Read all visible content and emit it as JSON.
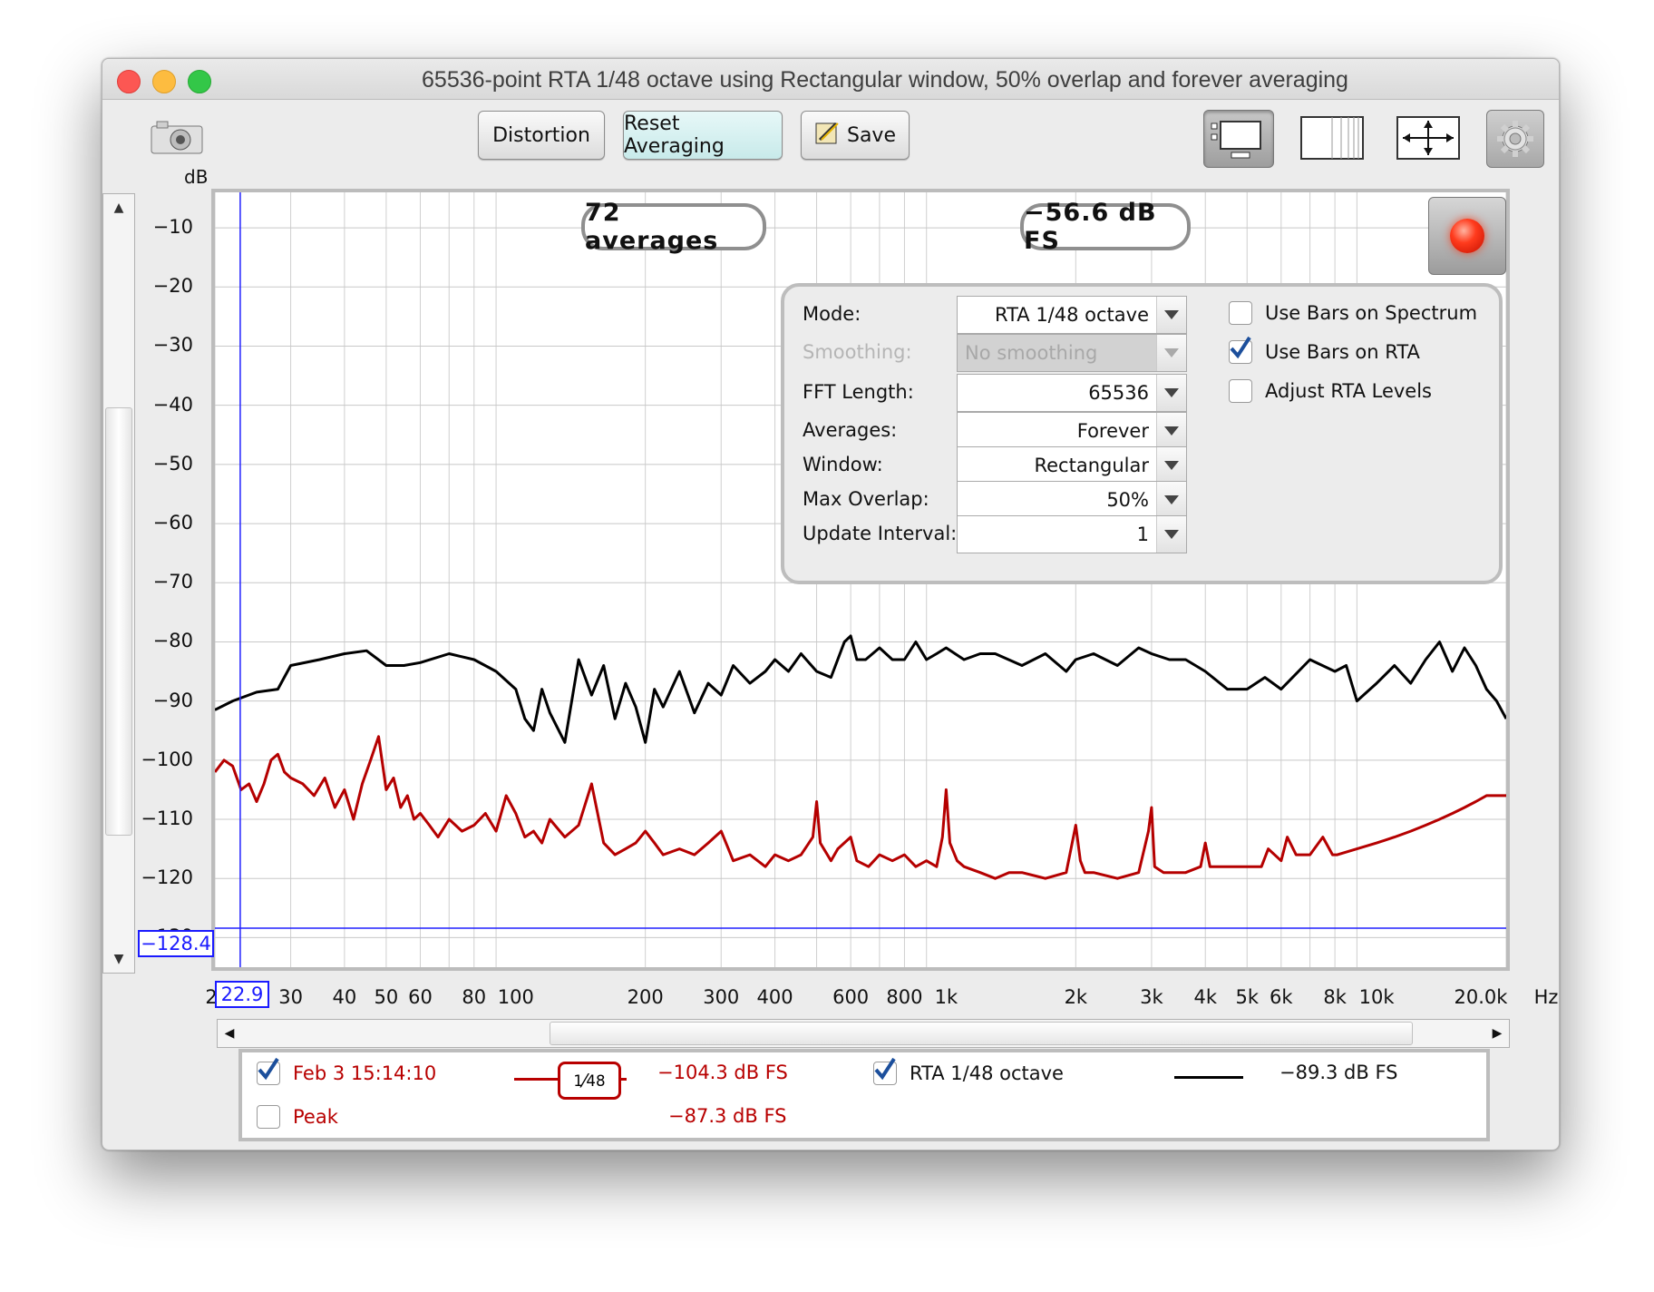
{
  "window": {
    "title": "65536-point RTA 1/48 octave using Rectangular window, 50% overlap and forever averaging"
  },
  "toolbar": {
    "buttons": [
      {
        "label": "Distortion"
      },
      {
        "label": "Reset Averaging"
      },
      {
        "label": "Save"
      }
    ],
    "icons": [
      "camera-icon",
      "layout-icon",
      "grid-icon",
      "zoom-arrows-icon",
      "gear-icon"
    ]
  },
  "plot": {
    "averages_readout": "72 averages",
    "level_readout": "−56.6 dB FS",
    "cursor_x_value": "22.9",
    "cursor_y_value": "−128.4",
    "x_leading_digit": "2",
    "y_unit": "dB",
    "x_unit": "Hz"
  },
  "settings": {
    "rows": [
      {
        "label": "Mode:",
        "value": "RTA 1/48 octave",
        "enabled": true
      },
      {
        "label": "Smoothing:",
        "value": "No  smoothing",
        "enabled": false
      },
      {
        "label": "FFT Length:",
        "value": "65536",
        "enabled": true
      },
      {
        "label": "Averages:",
        "value": "Forever",
        "enabled": true
      },
      {
        "label": "Window:",
        "value": "Rectangular",
        "enabled": true
      },
      {
        "label": "Max Overlap:",
        "value": "50%",
        "enabled": true
      },
      {
        "label": "Update Interval:",
        "value": "1",
        "enabled": true
      }
    ],
    "checkboxes": [
      {
        "label": "Use Bars on Spectrum",
        "checked": false
      },
      {
        "label": "Use Bars on RTA",
        "checked": true
      },
      {
        "label": "Adjust RTA Levels",
        "checked": false
      }
    ]
  },
  "legend": {
    "items": [
      {
        "label": "Feb 3 15:14:10",
        "checked": true,
        "value": "−104.3 dB FS",
        "smoothing_num": "1",
        "smoothing_den": "48"
      },
      {
        "label": "RTA 1/48 octave",
        "checked": true,
        "value": "−89.3 dB FS"
      },
      {
        "label": "Peak",
        "checked": false,
        "value": "−87.3 dB FS"
      }
    ]
  },
  "chart_data": {
    "type": "line",
    "x_scale": "log",
    "xlim": [
      20,
      20000
    ],
    "ylim": [
      -135,
      -4
    ],
    "ylabel": "dB",
    "xlabel": "Hz",
    "y_ticks": [
      "−10",
      "−20",
      "−30",
      "−40",
      "−50",
      "−60",
      "−70",
      "−80",
      "−90",
      "−100",
      "−110",
      "−120",
      "−130"
    ],
    "x_ticks": [
      {
        "value": 30,
        "label": "30"
      },
      {
        "value": 40,
        "label": "40"
      },
      {
        "value": 50,
        "label": "50"
      },
      {
        "value": 60,
        "label": "60"
      },
      {
        "value": 80,
        "label": "80"
      },
      {
        "value": 100,
        "label": "100"
      },
      {
        "value": 200,
        "label": "200"
      },
      {
        "value": 300,
        "label": "300"
      },
      {
        "value": 400,
        "label": "400"
      },
      {
        "value": 600,
        "label": "600"
      },
      {
        "value": 800,
        "label": "800"
      },
      {
        "value": 1000,
        "label": "1k"
      },
      {
        "value": 2000,
        "label": "2k"
      },
      {
        "value": 3000,
        "label": "3k"
      },
      {
        "value": 4000,
        "label": "4k"
      },
      {
        "value": 5000,
        "label": "5k"
      },
      {
        "value": 6000,
        "label": "6k"
      },
      {
        "value": 8000,
        "label": "8k"
      },
      {
        "value": 10000,
        "label": "10k"
      },
      {
        "value": 20000,
        "label": "20.0k"
      }
    ],
    "cursor": {
      "x": 22.9,
      "y": -128.4
    },
    "series": [
      {
        "color": "#000000",
        "x": [
          20,
          22,
          25,
          28,
          30,
          35,
          40,
          45,
          50,
          55,
          60,
          70,
          80,
          90,
          100,
          105,
          110,
          115,
          120,
          130,
          140,
          150,
          160,
          170,
          180,
          190,
          200,
          210,
          220,
          240,
          260,
          280,
          300,
          320,
          350,
          380,
          400,
          430,
          460,
          500,
          540,
          580,
          600,
          620,
          650,
          700,
          750,
          800,
          850,
          900,
          950,
          1000,
          1100,
          1200,
          1300,
          1500,
          1700,
          1900,
          2000,
          2200,
          2500,
          2800,
          3000,
          3300,
          3600,
          4000,
          4500,
          5000,
          5500,
          6000,
          7000,
          8000,
          8500,
          9000,
          10000,
          11000,
          12000,
          13000,
          14000,
          15000,
          16000,
          17000,
          18000,
          19000,
          20000
        ],
        "y": [
          -91.5,
          -90,
          -88.5,
          -88,
          -84,
          -83,
          -82,
          -81.5,
          -84,
          -84,
          -83.5,
          -82,
          -83,
          -85,
          -88,
          -93,
          -95,
          -88,
          -92,
          -97,
          -83,
          -89,
          -84,
          -93,
          -87,
          -91,
          -97,
          -88,
          -91,
          -85,
          -92,
          -87,
          -89,
          -84,
          -87,
          -85,
          -83,
          -85,
          -82,
          -85,
          -86,
          -80,
          -79,
          -83,
          -83,
          -81,
          -83,
          -83,
          -80,
          -83,
          -82,
          -81,
          -83,
          -82,
          -82,
          -84,
          -82,
          -85,
          -83,
          -82,
          -84,
          -81,
          -82,
          -83,
          -83,
          -85,
          -88,
          -88,
          -86,
          -88,
          -83,
          -85,
          -84,
          -90,
          -87,
          -84,
          -87,
          -83,
          -80,
          -85,
          -81,
          -84,
          -88,
          -90,
          -93
        ]
      },
      {
        "color": "#b50000",
        "x": [
          20,
          21,
          22,
          23,
          24,
          25,
          26,
          27,
          28,
          29,
          30,
          32,
          34,
          36,
          38,
          40,
          42,
          44,
          46,
          48,
          50,
          52,
          54,
          56,
          58,
          60,
          63,
          66,
          70,
          75,
          80,
          85,
          90,
          95,
          100,
          105,
          110,
          115,
          120,
          130,
          140,
          150,
          160,
          170,
          180,
          190,
          200,
          210,
          220,
          240,
          260,
          280,
          300,
          320,
          350,
          380,
          400,
          430,
          460,
          490,
          500,
          510,
          540,
          560,
          600,
          620,
          660,
          700,
          750,
          800,
          850,
          900,
          950,
          980,
          1000,
          1020,
          1060,
          1100,
          1200,
          1300,
          1400,
          1500,
          1700,
          1900,
          2000,
          2050,
          2100,
          2200,
          2500,
          2800,
          2950,
          3000,
          3050,
          3200,
          3600,
          3900,
          4000,
          4100,
          4500,
          5000,
          5400,
          5600,
          6000,
          6200,
          6500,
          7000,
          7500,
          7900,
          8000,
          8100,
          9000,
          10000,
          11000,
          12000,
          13000,
          14000,
          15000,
          16000,
          17000,
          18000,
          19000,
          20000
        ],
        "y": [
          -102,
          -100,
          -101,
          -105,
          -104,
          -107,
          -104,
          -100,
          -99,
          -102,
          -103,
          -104,
          -106,
          -103,
          -108,
          -105,
          -110,
          -104,
          -100,
          -96,
          -105,
          -103,
          -108,
          -106,
          -110,
          -109,
          -111,
          -113,
          -110,
          -112,
          -111,
          -109,
          -112,
          -106,
          -109,
          -113,
          -112,
          -114,
          -110,
          -113,
          -111,
          -104,
          -114,
          -116,
          -115,
          -114,
          -112,
          -114,
          -116,
          -115,
          -116,
          -114,
          -112,
          -117,
          -116,
          -118,
          -116,
          -117,
          -116,
          -113,
          -107,
          -114,
          -117,
          -115,
          -113,
          -117,
          -118,
          -116,
          -117,
          -116,
          -118,
          -117,
          -118,
          -113,
          -105,
          -114,
          -117,
          -118,
          -119,
          -120,
          -119,
          -119,
          -120,
          -119,
          -111,
          -117,
          -119,
          -119,
          -120,
          -119,
          -112,
          -108,
          -118,
          -119,
          -119,
          -118,
          -114,
          -118,
          -118,
          -118,
          -118,
          -115,
          -117,
          -113,
          -116,
          -116,
          -113,
          -116,
          -116,
          -116,
          -115,
          -114,
          -113,
          -112,
          -111,
          -110,
          -109,
          -108,
          -107,
          -106,
          -106,
          -106
        ]
      }
    ]
  }
}
